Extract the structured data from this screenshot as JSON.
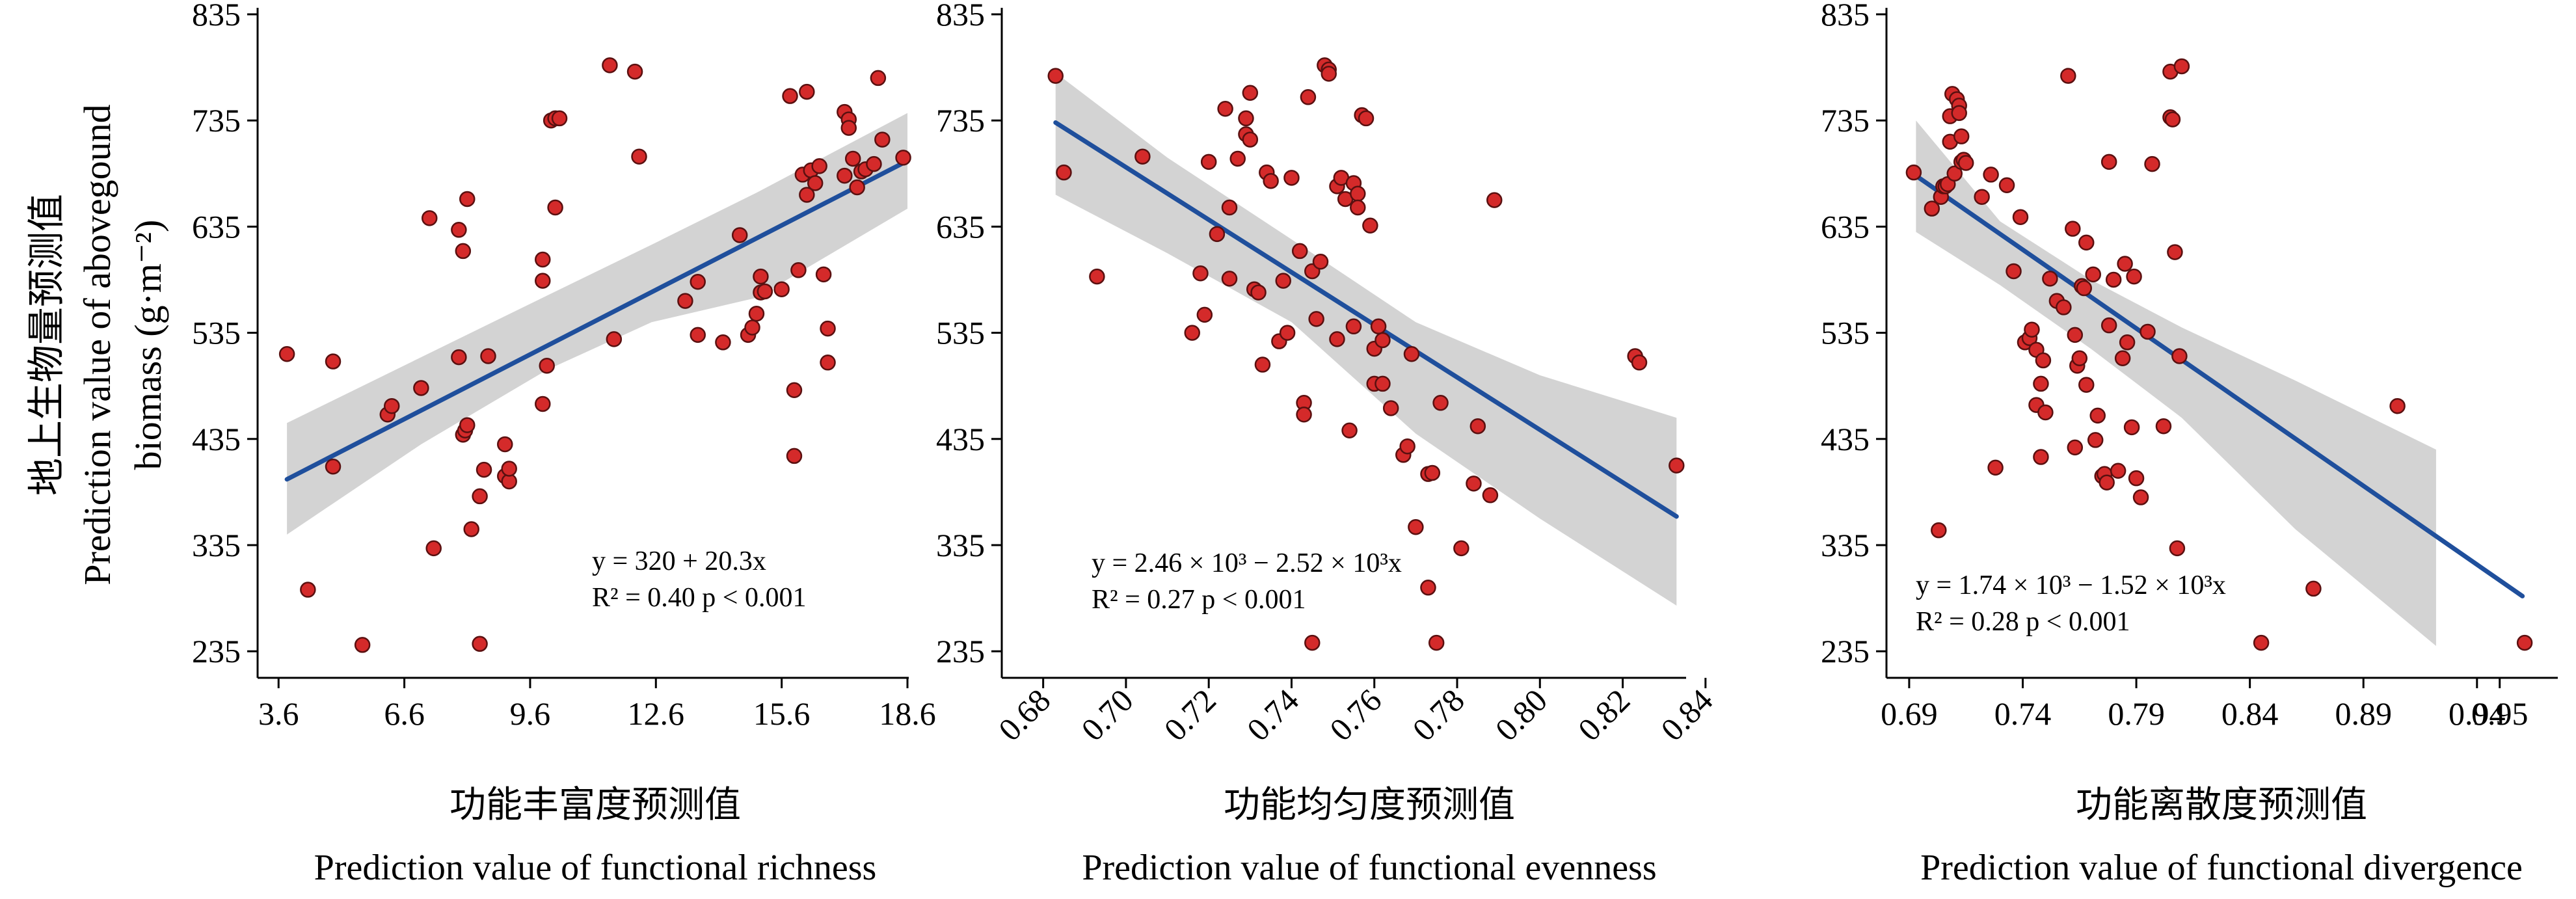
{
  "ylabel": {
    "cn": "地上生物量预测值",
    "en1": "Prediction value of abovegound",
    "en2": "biomass (g·m⁻²)"
  },
  "colors": {
    "point": "#d42a2a",
    "point_edge": "#5a1010",
    "line": "#1f4f9c",
    "band": "#d3d3d3"
  },
  "chart_data": [
    {
      "type": "scatter",
      "xlabel_cn": "功能丰富度预测值",
      "xlabel_en": "Prediction value of functional richness",
      "xlim": [
        3.1,
        18.6
      ],
      "ylim": [
        210,
        835
      ],
      "xticks": [
        3.6,
        6.6,
        9.6,
        12.6,
        15.6,
        18.6
      ],
      "xtick_labels": [
        "3.6",
        "6.6",
        "9.6",
        "12.6",
        "15.6",
        "18.6"
      ],
      "yticks": [
        235,
        335,
        435,
        535,
        635,
        735,
        835
      ],
      "ytick_labels": [
        "235",
        "335",
        "435",
        "535",
        "635",
        "735",
        "835"
      ],
      "rotate_xticks": false,
      "fit": {
        "x": [
          3.8,
          18.6
        ],
        "y": [
          397,
          697
        ]
      },
      "band": {
        "x": [
          3.8,
          7,
          10,
          12.5,
          15,
          18.6
        ],
        "upper": [
          450,
          512,
          570,
          618,
          667,
          742
        ],
        "lower": [
          345,
          430,
          500,
          545,
          568,
          652
        ]
      },
      "equation": {
        "line1": "y = 320 + 20.3x",
        "line2": "R² = 0.40 p < 0.001"
      },
      "points": [
        {
          "x": 3.8,
          "y": 515
        },
        {
          "x": 4.3,
          "y": 293
        },
        {
          "x": 4.9,
          "y": 409
        },
        {
          "x": 4.9,
          "y": 508
        },
        {
          "x": 5.6,
          "y": 241
        },
        {
          "x": 6.2,
          "y": 458
        },
        {
          "x": 6.3,
          "y": 466
        },
        {
          "x": 7.0,
          "y": 483
        },
        {
          "x": 7.2,
          "y": 643
        },
        {
          "x": 7.3,
          "y": 332
        },
        {
          "x": 7.9,
          "y": 632
        },
        {
          "x": 7.9,
          "y": 512
        },
        {
          "x": 8.0,
          "y": 612
        },
        {
          "x": 8.0,
          "y": 439
        },
        {
          "x": 8.05,
          "y": 443
        },
        {
          "x": 8.1,
          "y": 448
        },
        {
          "x": 8.1,
          "y": 661
        },
        {
          "x": 8.2,
          "y": 350
        },
        {
          "x": 8.4,
          "y": 381
        },
        {
          "x": 8.4,
          "y": 242
        },
        {
          "x": 8.5,
          "y": 406
        },
        {
          "x": 8.6,
          "y": 513
        },
        {
          "x": 9.0,
          "y": 430
        },
        {
          "x": 9.0,
          "y": 400
        },
        {
          "x": 9.1,
          "y": 395
        },
        {
          "x": 9.1,
          "y": 407
        },
        {
          "x": 9.9,
          "y": 604
        },
        {
          "x": 9.9,
          "y": 584
        },
        {
          "x": 9.9,
          "y": 468
        },
        {
          "x": 10.0,
          "y": 504
        },
        {
          "x": 10.1,
          "y": 735
        },
        {
          "x": 10.2,
          "y": 737
        },
        {
          "x": 10.3,
          "y": 737
        },
        {
          "x": 10.2,
          "y": 653
        },
        {
          "x": 11.5,
          "y": 787
        },
        {
          "x": 11.6,
          "y": 529
        },
        {
          "x": 12.1,
          "y": 781
        },
        {
          "x": 12.2,
          "y": 701
        },
        {
          "x": 13.3,
          "y": 565
        },
        {
          "x": 13.6,
          "y": 583
        },
        {
          "x": 13.6,
          "y": 533
        },
        {
          "x": 14.2,
          "y": 526
        },
        {
          "x": 14.6,
          "y": 627
        },
        {
          "x": 14.8,
          "y": 533
        },
        {
          "x": 14.9,
          "y": 540
        },
        {
          "x": 15.0,
          "y": 553
        },
        {
          "x": 15.1,
          "y": 588
        },
        {
          "x": 15.1,
          "y": 573
        },
        {
          "x": 15.2,
          "y": 574
        },
        {
          "x": 15.6,
          "y": 576
        },
        {
          "x": 15.9,
          "y": 481
        },
        {
          "x": 15.9,
          "y": 419
        },
        {
          "x": 16.0,
          "y": 594
        },
        {
          "x": 16.1,
          "y": 684
        },
        {
          "x": 16.2,
          "y": 665
        },
        {
          "x": 16.3,
          "y": 688
        },
        {
          "x": 16.4,
          "y": 676
        },
        {
          "x": 16.5,
          "y": 692
        },
        {
          "x": 16.6,
          "y": 590
        },
        {
          "x": 16.7,
          "y": 539
        },
        {
          "x": 16.7,
          "y": 507
        },
        {
          "x": 16.2,
          "y": 762
        },
        {
          "x": 15.8,
          "y": 758
        },
        {
          "x": 17.1,
          "y": 743
        },
        {
          "x": 17.2,
          "y": 736
        },
        {
          "x": 17.2,
          "y": 728
        },
        {
          "x": 17.1,
          "y": 683
        },
        {
          "x": 17.3,
          "y": 699
        },
        {
          "x": 17.4,
          "y": 672
        },
        {
          "x": 17.5,
          "y": 687
        },
        {
          "x": 17.6,
          "y": 689
        },
        {
          "x": 17.8,
          "y": 694
        },
        {
          "x": 17.9,
          "y": 775
        },
        {
          "x": 18.0,
          "y": 717
        },
        {
          "x": 18.5,
          "y": 700
        }
      ]
    },
    {
      "type": "scatter",
      "xlabel_cn": "功能均匀度预测值",
      "xlabel_en": "Prediction value of functional evenness",
      "xlim": [
        0.67,
        0.835
      ],
      "ylim": [
        210,
        835
      ],
      "xticks": [
        0.68,
        0.7,
        0.72,
        0.74,
        0.76,
        0.78,
        0.8,
        0.82,
        0.84
      ],
      "xtick_labels": [
        "0.68",
        "0.70",
        "0.72",
        "0.74",
        "0.76",
        "0.78",
        "0.80",
        "0.82",
        "0.84"
      ],
      "yticks": [
        235,
        335,
        435,
        535,
        635,
        735,
        835
      ],
      "ytick_labels": [
        "235",
        "335",
        "435",
        "535",
        "635",
        "735",
        "835"
      ],
      "rotate_xticks": true,
      "fit": {
        "x": [
          0.683,
          0.833
        ],
        "y": [
          733,
          362
        ]
      },
      "band": {
        "x": [
          0.683,
          0.71,
          0.74,
          0.77,
          0.8,
          0.833
        ],
        "upper": [
          780,
          700,
          623,
          545,
          495,
          455
        ],
        "lower": [
          665,
          610,
          545,
          440,
          360,
          278
        ]
      },
      "equation": {
        "line1": "y = 2.46 × 10³ − 2.52 × 10³x",
        "line2": "R² = 0.27 p < 0.001"
      },
      "points": [
        {
          "x": 0.683,
          "y": 777
        },
        {
          "x": 0.685,
          "y": 686
        },
        {
          "x": 0.693,
          "y": 588
        },
        {
          "x": 0.704,
          "y": 701
        },
        {
          "x": 0.716,
          "y": 535
        },
        {
          "x": 0.718,
          "y": 591
        },
        {
          "x": 0.719,
          "y": 552
        },
        {
          "x": 0.72,
          "y": 696
        },
        {
          "x": 0.722,
          "y": 628
        },
        {
          "x": 0.724,
          "y": 746
        },
        {
          "x": 0.725,
          "y": 586
        },
        {
          "x": 0.725,
          "y": 653
        },
        {
          "x": 0.727,
          "y": 699
        },
        {
          "x": 0.729,
          "y": 722
        },
        {
          "x": 0.729,
          "y": 737
        },
        {
          "x": 0.73,
          "y": 717
        },
        {
          "x": 0.73,
          "y": 761
        },
        {
          "x": 0.731,
          "y": 576
        },
        {
          "x": 0.732,
          "y": 573
        },
        {
          "x": 0.733,
          "y": 505
        },
        {
          "x": 0.734,
          "y": 686
        },
        {
          "x": 0.735,
          "y": 678
        },
        {
          "x": 0.737,
          "y": 527
        },
        {
          "x": 0.738,
          "y": 584
        },
        {
          "x": 0.739,
          "y": 535
        },
        {
          "x": 0.74,
          "y": 681
        },
        {
          "x": 0.742,
          "y": 612
        },
        {
          "x": 0.743,
          "y": 469
        },
        {
          "x": 0.743,
          "y": 458
        },
        {
          "x": 0.744,
          "y": 757
        },
        {
          "x": 0.745,
          "y": 593
        },
        {
          "x": 0.745,
          "y": 243
        },
        {
          "x": 0.746,
          "y": 548
        },
        {
          "x": 0.747,
          "y": 602
        },
        {
          "x": 0.748,
          "y": 787
        },
        {
          "x": 0.749,
          "y": 783
        },
        {
          "x": 0.749,
          "y": 779
        },
        {
          "x": 0.751,
          "y": 529
        },
        {
          "x": 0.751,
          "y": 673
        },
        {
          "x": 0.752,
          "y": 681
        },
        {
          "x": 0.753,
          "y": 661
        },
        {
          "x": 0.754,
          "y": 443
        },
        {
          "x": 0.755,
          "y": 541
        },
        {
          "x": 0.755,
          "y": 676
        },
        {
          "x": 0.756,
          "y": 666
        },
        {
          "x": 0.756,
          "y": 653
        },
        {
          "x": 0.757,
          "y": 740
        },
        {
          "x": 0.758,
          "y": 737
        },
        {
          "x": 0.759,
          "y": 636
        },
        {
          "x": 0.76,
          "y": 520
        },
        {
          "x": 0.76,
          "y": 487
        },
        {
          "x": 0.761,
          "y": 541
        },
        {
          "x": 0.762,
          "y": 487
        },
        {
          "x": 0.762,
          "y": 528
        },
        {
          "x": 0.764,
          "y": 464
        },
        {
          "x": 0.767,
          "y": 420
        },
        {
          "x": 0.768,
          "y": 428
        },
        {
          "x": 0.769,
          "y": 515
        },
        {
          "x": 0.77,
          "y": 352
        },
        {
          "x": 0.773,
          "y": 295
        },
        {
          "x": 0.773,
          "y": 402
        },
        {
          "x": 0.774,
          "y": 403
        },
        {
          "x": 0.775,
          "y": 243
        },
        {
          "x": 0.776,
          "y": 469
        },
        {
          "x": 0.781,
          "y": 332
        },
        {
          "x": 0.784,
          "y": 393
        },
        {
          "x": 0.785,
          "y": 447
        },
        {
          "x": 0.788,
          "y": 382
        },
        {
          "x": 0.789,
          "y": 660
        },
        {
          "x": 0.823,
          "y": 513
        },
        {
          "x": 0.824,
          "y": 507
        },
        {
          "x": 0.833,
          "y": 410
        }
      ]
    },
    {
      "type": "scatter",
      "xlabel_cn": "功能离散度预测值",
      "xlabel_en": "Prediction value of functional divergence",
      "xlim": [
        0.68,
        0.975
      ],
      "ylim": [
        210,
        835
      ],
      "xticks": [
        0.69,
        0.74,
        0.79,
        0.84,
        0.89,
        0.94,
        0.95
      ],
      "xtick_labels": [
        "0.69",
        "0.74",
        "0.79",
        "0.84",
        "0.89",
        "0.94",
        "0.95"
      ],
      "yticks": [
        235,
        335,
        435,
        535,
        635,
        735,
        835
      ],
      "ytick_labels": [
        "235",
        "335",
        "435",
        "535",
        "635",
        "735",
        "835"
      ],
      "rotate_xticks": false,
      "fit": {
        "x": [
          0.693,
          0.96
        ],
        "y": [
          683,
          287
        ]
      },
      "band": {
        "x": [
          0.693,
          0.73,
          0.77,
          0.81,
          0.86,
          0.922
        ],
        "upper": [
          735,
          640,
          585,
          540,
          490,
          425
        ],
        "lower": [
          630,
          580,
          520,
          455,
          350,
          240
        ]
      },
      "equation": {
        "line1": "y = 1.74 × 10³ − 1.52 × 10³x",
        "line2": "R² = 0.28 p < 0.001"
      },
      "points": [
        {
          "x": 0.692,
          "y": 686
        },
        {
          "x": 0.7,
          "y": 652
        },
        {
          "x": 0.703,
          "y": 349
        },
        {
          "x": 0.704,
          "y": 663
        },
        {
          "x": 0.705,
          "y": 673
        },
        {
          "x": 0.706,
          "y": 673
        },
        {
          "x": 0.707,
          "y": 675
        },
        {
          "x": 0.708,
          "y": 739
        },
        {
          "x": 0.708,
          "y": 715
        },
        {
          "x": 0.709,
          "y": 760
        },
        {
          "x": 0.71,
          "y": 685
        },
        {
          "x": 0.711,
          "y": 755
        },
        {
          "x": 0.712,
          "y": 749
        },
        {
          "x": 0.712,
          "y": 742
        },
        {
          "x": 0.713,
          "y": 696
        },
        {
          "x": 0.713,
          "y": 720
        },
        {
          "x": 0.714,
          "y": 698
        },
        {
          "x": 0.715,
          "y": 695
        },
        {
          "x": 0.722,
          "y": 663
        },
        {
          "x": 0.726,
          "y": 684
        },
        {
          "x": 0.728,
          "y": 408
        },
        {
          "x": 0.733,
          "y": 674
        },
        {
          "x": 0.736,
          "y": 593
        },
        {
          "x": 0.739,
          "y": 644
        },
        {
          "x": 0.741,
          "y": 526
        },
        {
          "x": 0.743,
          "y": 530
        },
        {
          "x": 0.744,
          "y": 538
        },
        {
          "x": 0.746,
          "y": 519
        },
        {
          "x": 0.746,
          "y": 467
        },
        {
          "x": 0.748,
          "y": 418
        },
        {
          "x": 0.748,
          "y": 487
        },
        {
          "x": 0.749,
          "y": 509
        },
        {
          "x": 0.75,
          "y": 460
        },
        {
          "x": 0.752,
          "y": 586
        },
        {
          "x": 0.755,
          "y": 565
        },
        {
          "x": 0.758,
          "y": 559
        },
        {
          "x": 0.76,
          "y": 777
        },
        {
          "x": 0.762,
          "y": 633
        },
        {
          "x": 0.763,
          "y": 533
        },
        {
          "x": 0.763,
          "y": 427
        },
        {
          "x": 0.764,
          "y": 504
        },
        {
          "x": 0.765,
          "y": 511
        },
        {
          "x": 0.766,
          "y": 579
        },
        {
          "x": 0.767,
          "y": 577
        },
        {
          "x": 0.768,
          "y": 486
        },
        {
          "x": 0.768,
          "y": 620
        },
        {
          "x": 0.771,
          "y": 590
        },
        {
          "x": 0.772,
          "y": 434
        },
        {
          "x": 0.773,
          "y": 457
        },
        {
          "x": 0.775,
          "y": 400
        },
        {
          "x": 0.776,
          "y": 402
        },
        {
          "x": 0.777,
          "y": 394
        },
        {
          "x": 0.778,
          "y": 542
        },
        {
          "x": 0.778,
          "y": 696
        },
        {
          "x": 0.78,
          "y": 585
        },
        {
          "x": 0.782,
          "y": 405
        },
        {
          "x": 0.784,
          "y": 511
        },
        {
          "x": 0.785,
          "y": 600
        },
        {
          "x": 0.786,
          "y": 526
        },
        {
          "x": 0.788,
          "y": 446
        },
        {
          "x": 0.789,
          "y": 588
        },
        {
          "x": 0.79,
          "y": 398
        },
        {
          "x": 0.792,
          "y": 380
        },
        {
          "x": 0.795,
          "y": 536
        },
        {
          "x": 0.797,
          "y": 694
        },
        {
          "x": 0.802,
          "y": 447
        },
        {
          "x": 0.805,
          "y": 781
        },
        {
          "x": 0.805,
          "y": 738
        },
        {
          "x": 0.806,
          "y": 736
        },
        {
          "x": 0.807,
          "y": 611
        },
        {
          "x": 0.808,
          "y": 332
        },
        {
          "x": 0.809,
          "y": 513
        },
        {
          "x": 0.81,
          "y": 786
        },
        {
          "x": 0.845,
          "y": 243
        },
        {
          "x": 0.868,
          "y": 294
        },
        {
          "x": 0.905,
          "y": 466
        },
        {
          "x": 0.961,
          "y": 243
        }
      ]
    }
  ]
}
